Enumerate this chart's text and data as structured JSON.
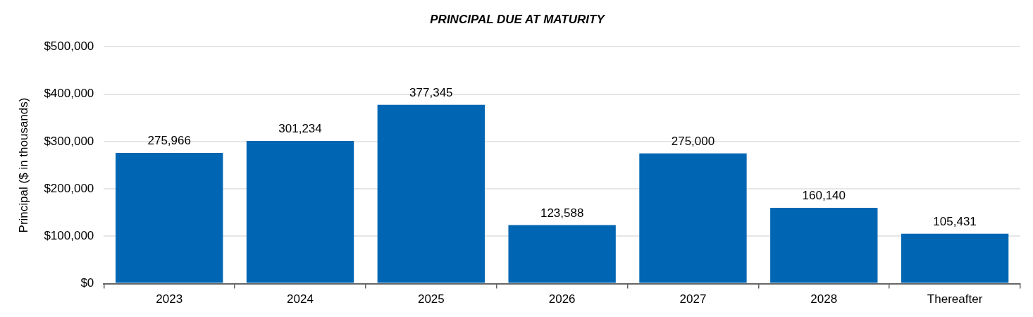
{
  "chart_data": {
    "type": "bar",
    "title": "PRINCIPAL DUE AT MATURITY",
    "ylabel": "Principal ($ in thousands)",
    "categories": [
      "2023",
      "2024",
      "2025",
      "2026",
      "2027",
      "2028",
      "Thereafter"
    ],
    "values": [
      275966,
      301234,
      377345,
      123588,
      275000,
      160140,
      105431
    ],
    "color": "#0066b3",
    "ylim": [
      0,
      500000
    ],
    "yticks": [
      {
        "value": 0,
        "label": "$0"
      },
      {
        "value": 100000,
        "label": "$100,000"
      },
      {
        "value": 200000,
        "label": "$200,000"
      },
      {
        "value": 300000,
        "label": "$300,000"
      },
      {
        "value": 400000,
        "label": "$400,000"
      },
      {
        "value": 500000,
        "label": "$500,000"
      }
    ],
    "grid": "y",
    "legend": false,
    "value_labels": [
      "275,966",
      "301,234",
      "377,345",
      "123,588",
      "275,000",
      "160,140",
      "105,431"
    ]
  }
}
